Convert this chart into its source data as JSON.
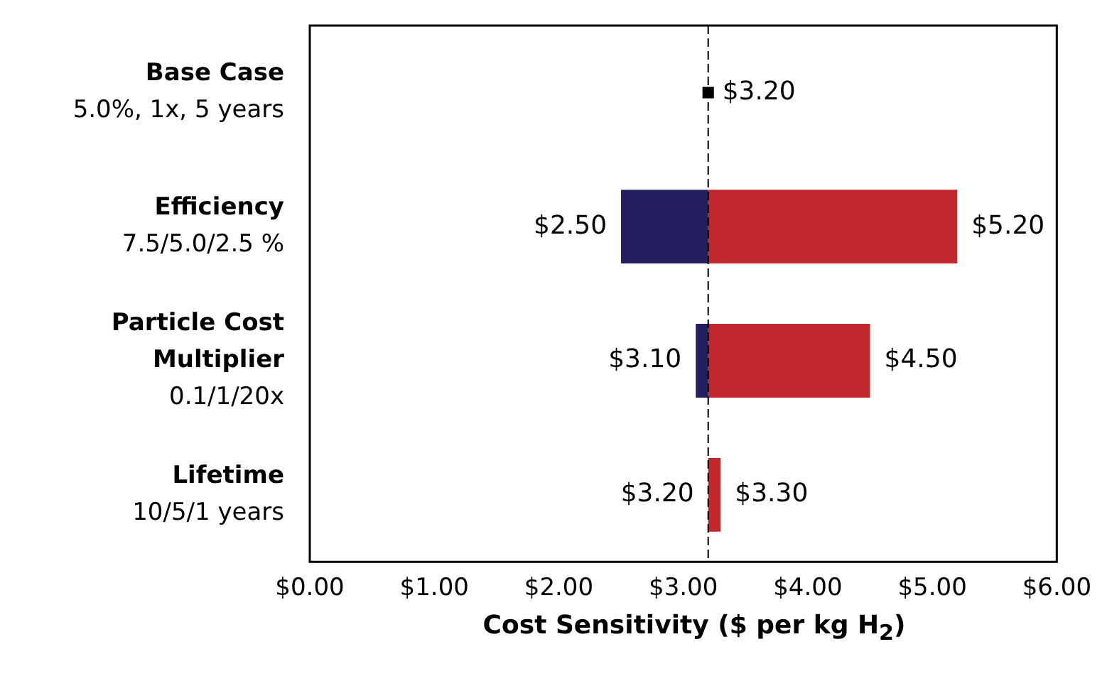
{
  "chart_data": {
    "type": "bar",
    "orientation": "horizontal",
    "categories": [
      "Base Case\n5.0%, 1x, 5 years",
      "Efficiency\n7.5/5.0/2.5 %",
      "Particle Cost\nMultiplier\n0.1/1/20x",
      "Lifetime\n10/5/1 years"
    ],
    "xlabel": "Cost Sensitivity ($ per kg H$_{2}$)",
    "xlim": [
      0,
      6
    ],
    "xticks": [
      {
        "value": 0,
        "label": "$0.00"
      },
      {
        "value": 1,
        "label": "$1.00"
      },
      {
        "value": 2,
        "label": "$2.00"
      },
      {
        "value": 3,
        "label": "$3.00"
      },
      {
        "value": 4,
        "label": "$4.00"
      },
      {
        "value": 5,
        "label": "$5.00"
      },
      {
        "value": 6,
        "label": "$6.00"
      }
    ],
    "annotations": [
      {
        "text": "$3.20",
        "x": 3.2,
        "y": "Lifetime\n10/5/1 years"
      }
    ],
    "grid": false,
    "legend": false,
    "ref_lines": [
      {
        "axis": "x",
        "value": 3.2,
        "color": "#000000",
        "line_style": "dashed"
      }
    ],
    "series": [
      {
        "color": "#231f5e",
        "base": [
          null,
          3.2,
          3.2,
          null
        ],
        "values": [
          null,
          -0.7,
          -0.1,
          null
        ],
        "value_labels": [
          null,
          "$2.50",
          "$3.10",
          null
        ]
      },
      {
        "color": "#c1272d",
        "base": [
          null,
          3.2,
          3.2,
          3.2
        ],
        "values": [
          null,
          2.0,
          1.3,
          0.1
        ],
        "value_labels": [
          null,
          "$5.20",
          "$4.50",
          "$3.30"
        ]
      },
      {
        "type": "scatter",
        "marker": "square",
        "color": "#000000",
        "values": [
          3.2,
          null,
          null,
          null
        ],
        "value_labels": [
          "$3.20",
          null,
          null,
          null
        ]
      }
    ]
  }
}
